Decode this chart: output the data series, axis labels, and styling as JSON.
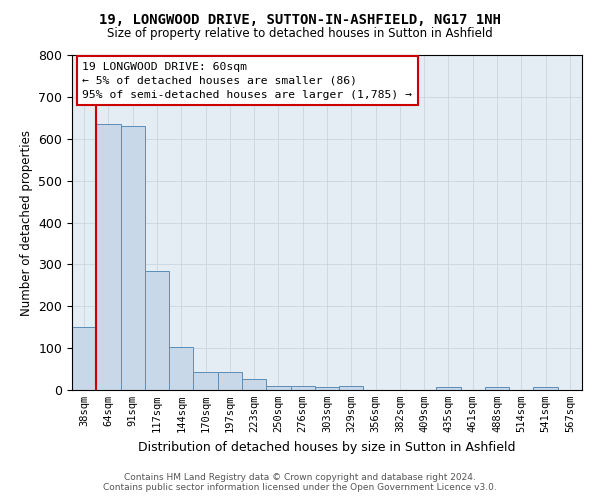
{
  "title": "19, LONGWOOD DRIVE, SUTTON-IN-ASHFIELD, NG17 1NH",
  "subtitle": "Size of property relative to detached houses in Sutton in Ashfield",
  "xlabel": "Distribution of detached houses by size in Sutton in Ashfield",
  "ylabel": "Number of detached properties",
  "footer1": "Contains HM Land Registry data © Crown copyright and database right 2024.",
  "footer2": "Contains public sector information licensed under the Open Government Licence v3.0.",
  "bar_color": "#c8d8e8",
  "bar_edge_color": "#5b8db8",
  "grid_color": "#c8d0d8",
  "background_color": "#ffffff",
  "plot_bg_color": "#e4ecf4",
  "annotation_box_color": "#cc0000",
  "vline_color": "#cc0000",
  "categories": [
    "38sqm",
    "64sqm",
    "91sqm",
    "117sqm",
    "144sqm",
    "170sqm",
    "197sqm",
    "223sqm",
    "250sqm",
    "276sqm",
    "303sqm",
    "329sqm",
    "356sqm",
    "382sqm",
    "409sqm",
    "435sqm",
    "461sqm",
    "488sqm",
    "514sqm",
    "541sqm",
    "567sqm"
  ],
  "values": [
    150,
    635,
    630,
    285,
    102,
    43,
    43,
    27,
    10,
    10,
    8,
    10,
    0,
    0,
    0,
    6,
    0,
    6,
    0,
    7,
    0
  ],
  "ylim": [
    0,
    800
  ],
  "yticks": [
    0,
    100,
    200,
    300,
    400,
    500,
    600,
    700,
    800
  ],
  "annotation_line1": "19 LONGWOOD DRIVE: 60sqm",
  "annotation_line2": "← 5% of detached houses are smaller (86)",
  "annotation_line3": "95% of semi-detached houses are larger (1,785) →"
}
